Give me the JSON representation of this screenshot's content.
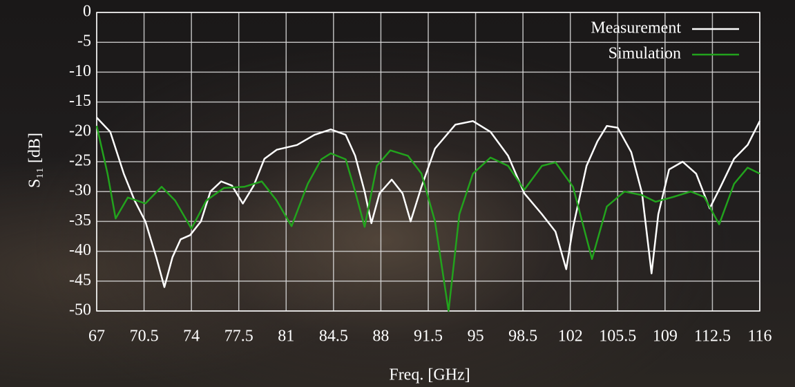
{
  "chart_data": {
    "type": "line",
    "xlabel": "Freq. [GHz]",
    "ylabel": "S₁₁ [dB]",
    "xlim": [
      67,
      116
    ],
    "xticks": [
      67,
      70.5,
      74,
      77.5,
      81,
      84.5,
      88,
      91.5,
      95,
      98.5,
      102,
      105.5,
      109,
      112.5,
      116
    ],
    "ylim": [
      -50,
      0
    ],
    "yticks": [
      0,
      -5,
      -10,
      -15,
      -20,
      -25,
      -30,
      -35,
      -40,
      -45,
      -50
    ],
    "grid": true,
    "legend": "upper right",
    "series": [
      {
        "name": "Measurement",
        "color": "#ffffff",
        "x": [
          67,
          68,
          69,
          69.8,
          70.6,
          71.4,
          72,
          72.6,
          73.2,
          73.9,
          74.7,
          75.4,
          76.2,
          77,
          77.8,
          78.6,
          79.4,
          80.3,
          81.8,
          83.1,
          84.3,
          85.4,
          86.1,
          86.8,
          87.3,
          87.9,
          88.8,
          89.6,
          90.2,
          91,
          92,
          93.5,
          94.8,
          96.1,
          97.4,
          98.6,
          99.9,
          100.9,
          101.7,
          102.2,
          103.2,
          104,
          104.7,
          105.5,
          106.5,
          107.3,
          108,
          108.5,
          109.3,
          110.3,
          111.3,
          112.3,
          113.1,
          114.1,
          115.1,
          116
        ],
        "values": [
          -17.6,
          -20,
          -27,
          -31.5,
          -35,
          -41,
          -46,
          -41,
          -38,
          -37.3,
          -35,
          -30,
          -28.3,
          -29,
          -32,
          -29,
          -24.5,
          -23,
          -22.2,
          -20.5,
          -19.6,
          -20.5,
          -24,
          -30,
          -35.3,
          -30.3,
          -28,
          -30.3,
          -35,
          -29.2,
          -22.8,
          -18.8,
          -18.2,
          -20,
          -24,
          -30.3,
          -33.8,
          -36.7,
          -43,
          -36,
          -25.7,
          -21.6,
          -19,
          -19.3,
          -23.4,
          -30.3,
          -43.7,
          -33.8,
          -26.3,
          -25,
          -27,
          -32.8,
          -29.2,
          -24.5,
          -22.2,
          -18.2
        ]
      },
      {
        "name": "Simulation",
        "color": "#22a31d",
        "x": [
          67,
          67.8,
          68.4,
          69.3,
          70.6,
          71.8,
          72.8,
          74,
          75.1,
          76.4,
          77.9,
          79.2,
          80.3,
          81.4,
          82.6,
          83.6,
          84.3,
          85.4,
          86.1,
          86.8,
          87.7,
          88.7,
          90,
          91,
          92,
          93,
          93.8,
          94.8,
          96.1,
          97.4,
          98.6,
          99.9,
          100.9,
          102.2,
          103.6,
          104.7,
          106,
          107.3,
          108.3,
          109.6,
          110.9,
          111.9,
          113,
          114.1,
          115.1,
          116
        ],
        "values": [
          -19,
          -27,
          -34.5,
          -31,
          -32,
          -29.2,
          -31.5,
          -36.2,
          -31.5,
          -29.4,
          -29.2,
          -28.3,
          -31.5,
          -35.8,
          -28.7,
          -24.6,
          -23.6,
          -24.6,
          -30,
          -35.9,
          -25.7,
          -23.1,
          -24,
          -27,
          -35,
          -50,
          -33.8,
          -27,
          -24.3,
          -25.7,
          -29.7,
          -25.7,
          -25.1,
          -29.2,
          -41.3,
          -32.5,
          -30,
          -30.6,
          -31.7,
          -30.9,
          -30,
          -30.9,
          -35.5,
          -28.7,
          -26,
          -27
        ]
      }
    ]
  }
}
